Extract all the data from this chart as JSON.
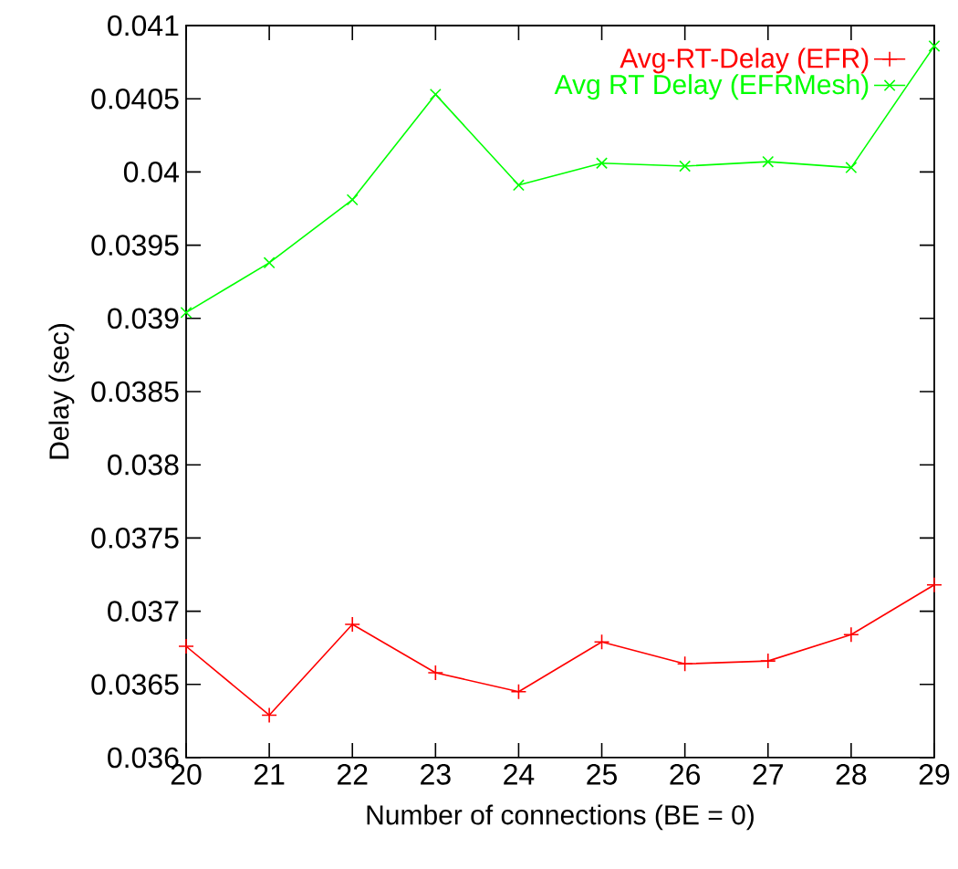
{
  "chart_data": {
    "type": "line",
    "xlabel": "Number of connections (BE = 0)",
    "ylabel": "Delay (sec)",
    "x": [
      20,
      21,
      22,
      23,
      24,
      25,
      26,
      27,
      28,
      29
    ],
    "series": [
      {
        "name": "Avg-RT-Delay (EFR)",
        "color": "#ff0000",
        "marker": "plus",
        "values": [
          0.03676,
          0.03629,
          0.03691,
          0.03658,
          0.03645,
          0.03679,
          0.03664,
          0.03666,
          0.03684,
          0.03718
        ]
      },
      {
        "name": "Avg RT Delay (EFRMesh)",
        "color": "#00ff00",
        "marker": "cross",
        "values": [
          0.03904,
          0.03938,
          0.03981,
          0.04053,
          0.03991,
          0.04006,
          0.04004,
          0.04007,
          0.04003,
          0.04086
        ]
      }
    ],
    "xlim": [
      20,
      29
    ],
    "ylim": [
      0.036,
      0.041
    ],
    "xticks": [
      20,
      21,
      22,
      23,
      24,
      25,
      26,
      27,
      28,
      29
    ],
    "yticks": [
      0.036,
      0.0365,
      0.037,
      0.0375,
      0.038,
      0.0385,
      0.039,
      0.0395,
      0.04,
      0.0405,
      0.041
    ],
    "legend": "top right",
    "grid": false,
    "line_style": "solid"
  }
}
